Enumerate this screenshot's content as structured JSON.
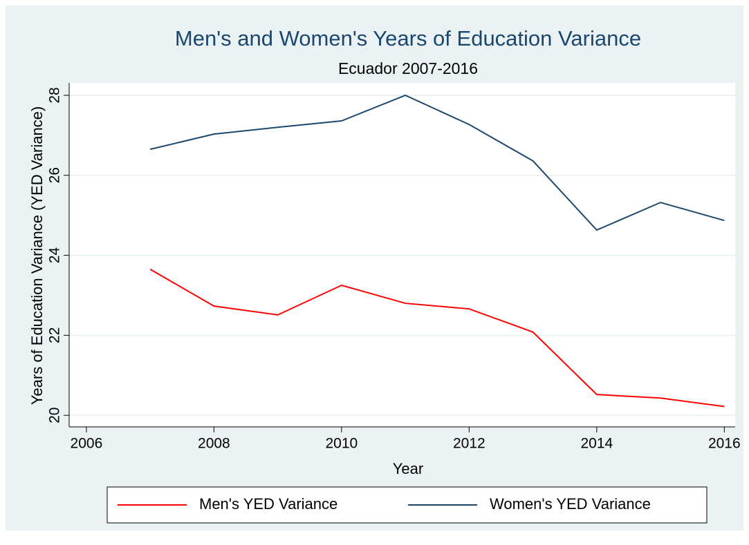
{
  "chart_data": {
    "type": "line",
    "title": "Men's and Women's Years of Education Variance",
    "subtitle": "Ecuador 2007-2016",
    "xlabel": "Year",
    "ylabel": "Years of Education Variance (YED Variance)",
    "x": [
      2007,
      2008,
      2009,
      2010,
      2011,
      2012,
      2013,
      2014,
      2015,
      2016
    ],
    "series": [
      {
        "name": "Men's YED Variance",
        "color": "#ff0000",
        "values": [
          23.65,
          22.73,
          22.51,
          23.25,
          22.8,
          22.66,
          22.08,
          20.52,
          20.43,
          20.22
        ]
      },
      {
        "name": "Women's YED Variance",
        "color": "#1a476f",
        "values": [
          26.65,
          27.03,
          27.2,
          27.36,
          28.0,
          27.27,
          26.36,
          24.63,
          25.32,
          24.87
        ]
      }
    ],
    "xlim": [
      2005.73,
      2016.17
    ],
    "xticks": [
      2006,
      2008,
      2010,
      2012,
      2014,
      2016
    ],
    "ylim": [
      19.71,
      28.31
    ],
    "yticks": [
      20,
      22,
      24,
      26,
      28
    ],
    "grid": true,
    "legend": "bottom"
  }
}
